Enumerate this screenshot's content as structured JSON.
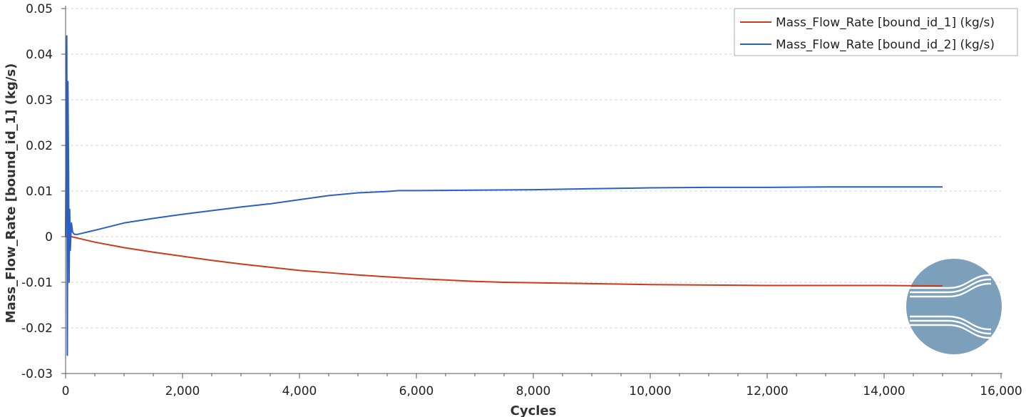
{
  "chart_data": {
    "type": "line",
    "xlabel": "Cycles",
    "ylabel": "Mass_Flow_Rate [bound_id_1] (kg/s)",
    "xlim": [
      0,
      16000
    ],
    "ylim": [
      -0.03,
      0.05
    ],
    "x_ticks": [
      0,
      2000,
      4000,
      6000,
      8000,
      10000,
      12000,
      14000,
      16000
    ],
    "x_tick_labels": [
      "0",
      "2,000",
      "4,000",
      "6,000",
      "8,000",
      "10,000",
      "12,000",
      "14,000",
      "16,000"
    ],
    "y_ticks": [
      -0.03,
      -0.02,
      -0.01,
      0,
      0.01,
      0.02,
      0.03,
      0.04,
      0.05
    ],
    "y_tick_labels": [
      "-0.03",
      "-0.02",
      "-0.01",
      "0",
      "0.01",
      "0.02",
      "0.03",
      "0.04",
      "0.05"
    ],
    "grid": "horizontal dashed",
    "legend_position": "top-right",
    "series": [
      {
        "name": "Mass_Flow_Rate [bound_id_1] (kg/s)",
        "color": "#cc3a1a",
        "x": [
          0,
          100,
          200,
          500,
          1000,
          1500,
          2000,
          2500,
          3000,
          3500,
          4000,
          4500,
          5000,
          5500,
          6000,
          6500,
          7000,
          7500,
          8000,
          9000,
          10000,
          11000,
          12000,
          13000,
          14000,
          15000
        ],
        "y": [
          0,
          0.0,
          -0.0003,
          -0.0012,
          -0.0024,
          -0.0034,
          -0.0043,
          -0.0052,
          -0.006,
          -0.0067,
          -0.0074,
          -0.0079,
          -0.0084,
          -0.0088,
          -0.0092,
          -0.0095,
          -0.0098,
          -0.01,
          -0.0101,
          -0.0103,
          -0.0105,
          -0.0106,
          -0.0107,
          -0.0107,
          -0.0107,
          -0.0108
        ]
      },
      {
        "name": "Mass_Flow_Rate [bound_id_2] (kg/s)",
        "color": "#2a5fc7",
        "x": [
          0,
          20,
          30,
          40,
          50,
          60,
          70,
          80,
          100,
          120,
          150,
          200,
          500,
          1000,
          1500,
          2000,
          2500,
          3000,
          3500,
          4000,
          4500,
          5000,
          5500,
          5700,
          6000,
          7000,
          8000,
          9000,
          10000,
          11000,
          12000,
          13000,
          14000,
          15000
        ],
        "y": [
          0,
          0.044,
          -0.026,
          0.034,
          0.016,
          -0.01,
          0.006,
          -0.003,
          0.003,
          0.001,
          0.0005,
          0.0005,
          0.0014,
          0.003,
          0.004,
          0.0049,
          0.0057,
          0.0065,
          0.0072,
          0.0081,
          0.009,
          0.0096,
          0.0099,
          0.0101,
          0.0101,
          0.0102,
          0.0103,
          0.0105,
          0.0107,
          0.0108,
          0.0108,
          0.0109,
          0.0109,
          0.0109
        ]
      }
    ]
  },
  "logo": {
    "name": "flow-logo",
    "color": "#7c9fbb"
  }
}
